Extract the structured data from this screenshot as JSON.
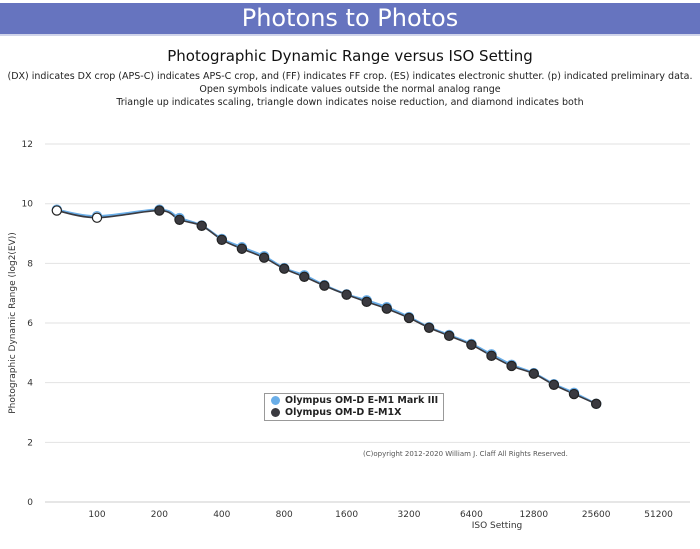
{
  "banner": "Photons to Photos",
  "chart_data": {
    "type": "line",
    "title": "Photographic Dynamic Range versus ISO Setting",
    "subtitles": [
      "(DX) indicates DX crop (APS-C) indicates APS-C crop, and (FF) indicates FF crop. (ES) indicates electronic shutter. (p) indicated preliminary data.",
      "Open symbols indicate values outside the normal analog range",
      "Triangle up indicates scaling, triangle down indicates noise reduction, and diamond indicates both"
    ],
    "xlabel": "ISO Setting",
    "ylabel": "Photographic Dynamic Range (log2(EV))",
    "xscale": "log2",
    "xticks": [
      "100",
      "200",
      "400",
      "800",
      "1600",
      "3200",
      "6400",
      "12800",
      "25600",
      "51200"
    ],
    "yticks": [
      "0",
      "2",
      "4",
      "6",
      "8",
      "10",
      "12"
    ],
    "ylim": [
      0,
      12
    ],
    "xlim": [
      50,
      80000
    ],
    "grid": true,
    "legend_position": "bottom-center",
    "series": [
      {
        "name": "Olympus OM-D E-M1 Mark III",
        "color": "#6aaee8",
        "x": [
          64,
          100,
          200,
          250,
          320,
          400,
          500,
          640,
          800,
          1000,
          1250,
          1600,
          2000,
          2500,
          3200,
          4000,
          5000,
          6400,
          8000,
          10000,
          12800,
          16000,
          20000,
          25600
        ],
        "y": [
          9.8,
          9.58,
          9.8,
          9.52,
          9.27,
          8.82,
          8.54,
          8.24,
          7.84,
          7.6,
          7.27,
          6.96,
          6.76,
          6.53,
          6.2,
          5.86,
          5.6,
          5.3,
          4.95,
          4.6,
          4.32,
          3.95,
          3.66,
          3.29
        ],
        "open": [
          true,
          true,
          false,
          false,
          false,
          false,
          false,
          false,
          false,
          false,
          false,
          false,
          false,
          false,
          false,
          false,
          false,
          false,
          false,
          false,
          false,
          false,
          false,
          false
        ]
      },
      {
        "name": "Olympus OM-D E-M1X",
        "color": "#3a3a40",
        "x": [
          64,
          100,
          200,
          250,
          320,
          400,
          500,
          640,
          800,
          1000,
          1250,
          1600,
          2000,
          2500,
          3200,
          4000,
          5000,
          6400,
          8000,
          10000,
          12800,
          16000,
          20000,
          25600
        ],
        "y": [
          9.77,
          9.53,
          9.77,
          9.46,
          9.26,
          8.79,
          8.49,
          8.19,
          7.82,
          7.55,
          7.25,
          6.95,
          6.71,
          6.48,
          6.17,
          5.84,
          5.57,
          5.27,
          4.9,
          4.56,
          4.3,
          3.93,
          3.62,
          3.29
        ],
        "open": [
          true,
          true,
          false,
          false,
          false,
          false,
          false,
          false,
          false,
          false,
          false,
          false,
          false,
          false,
          false,
          false,
          false,
          false,
          false,
          false,
          false,
          false,
          false,
          false
        ]
      }
    ],
    "copyright": "(C)opyright 2012-2020 William J. Claff All Rights Reserved."
  }
}
